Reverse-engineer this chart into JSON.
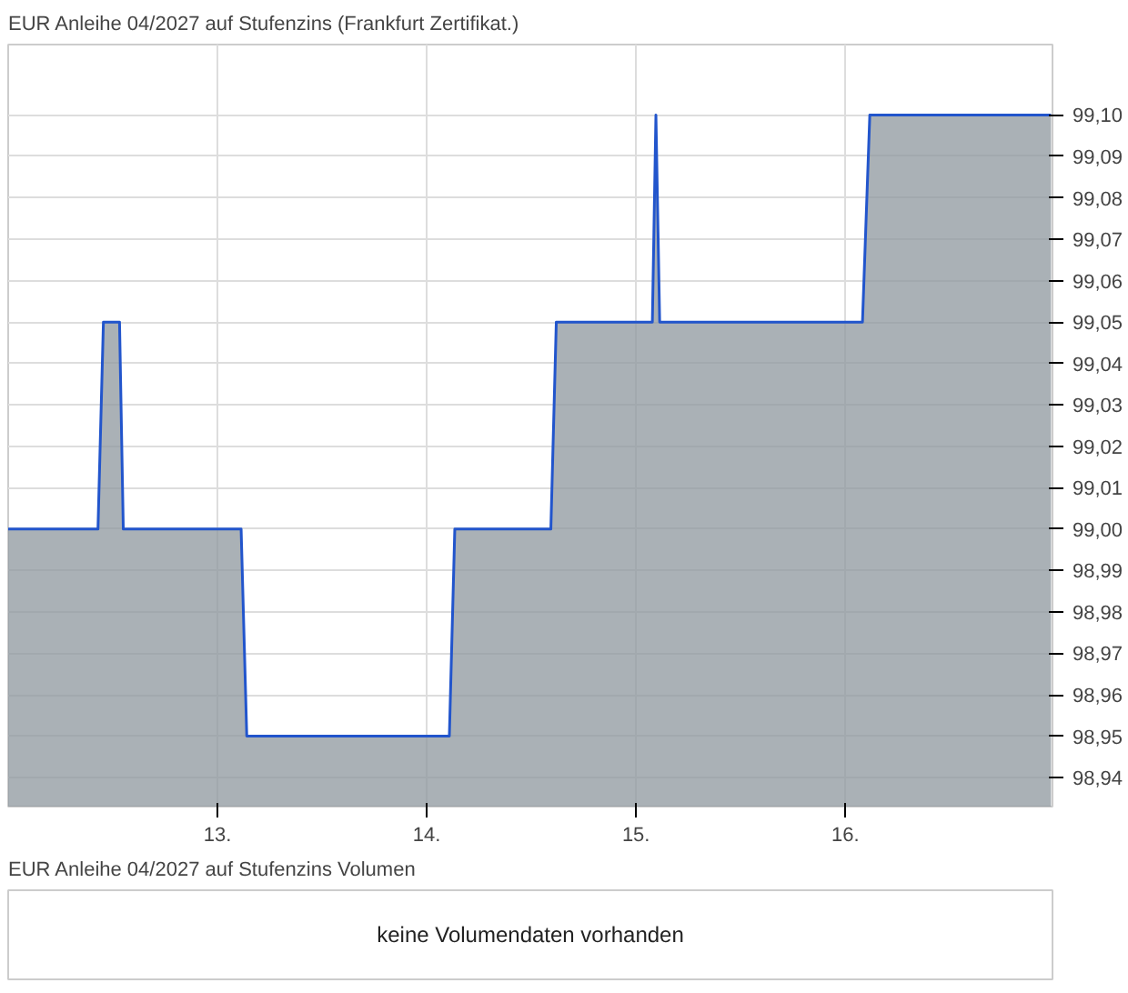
{
  "chart_data": [
    {
      "type": "area",
      "title": "EUR Anleihe 04/2027 auf Stufenzins (Frankfurt Zertifikat.)",
      "x": [
        12.0,
        12.429,
        12.455,
        12.532,
        12.55,
        13.113,
        13.14,
        14.108,
        14.134,
        14.593,
        14.619,
        15.078,
        15.095,
        15.113,
        16.082,
        16.117,
        16.983
      ],
      "series": [
        {
          "color": "#2255cc",
          "values": [
            99.0,
            99.0,
            99.05,
            99.05,
            99.0,
            99.0,
            98.95,
            98.95,
            99.0,
            99.0,
            99.05,
            99.05,
            99.1,
            99.05,
            99.05,
            99.1,
            99.1
          ]
        }
      ],
      "xlim": [
        12.0,
        16.99
      ],
      "ylim": [
        98.933,
        99.117
      ],
      "xticks": [
        {
          "value": 13,
          "label": "13."
        },
        {
          "value": 14,
          "label": "14."
        },
        {
          "value": 15,
          "label": "15."
        },
        {
          "value": 16,
          "label": "16."
        }
      ],
      "yticks": [
        {
          "value": 98.94,
          "label": "98,94"
        },
        {
          "value": 98.95,
          "label": "98,95"
        },
        {
          "value": 98.96,
          "label": "98,96"
        },
        {
          "value": 98.97,
          "label": "98,97"
        },
        {
          "value": 98.98,
          "label": "98,98"
        },
        {
          "value": 98.99,
          "label": "98,99"
        },
        {
          "value": 99.0,
          "label": "99,00"
        },
        {
          "value": 99.01,
          "label": "99,01"
        },
        {
          "value": 99.02,
          "label": "99,02"
        },
        {
          "value": 99.03,
          "label": "99,03"
        },
        {
          "value": 99.04,
          "label": "99,04"
        },
        {
          "value": 99.05,
          "label": "99,05"
        },
        {
          "value": 99.06,
          "label": "99,06"
        },
        {
          "value": 99.07,
          "label": "99,07"
        },
        {
          "value": 99.08,
          "label": "99,08"
        },
        {
          "value": 99.09,
          "label": "99,09"
        },
        {
          "value": 99.1,
          "label": "99,10"
        }
      ],
      "grid": true
    },
    {
      "type": "other",
      "title": "EUR Anleihe 04/2027 auf Stufenzins Volumen",
      "annotations": [
        "keine Volumendaten vorhanden"
      ]
    }
  ]
}
